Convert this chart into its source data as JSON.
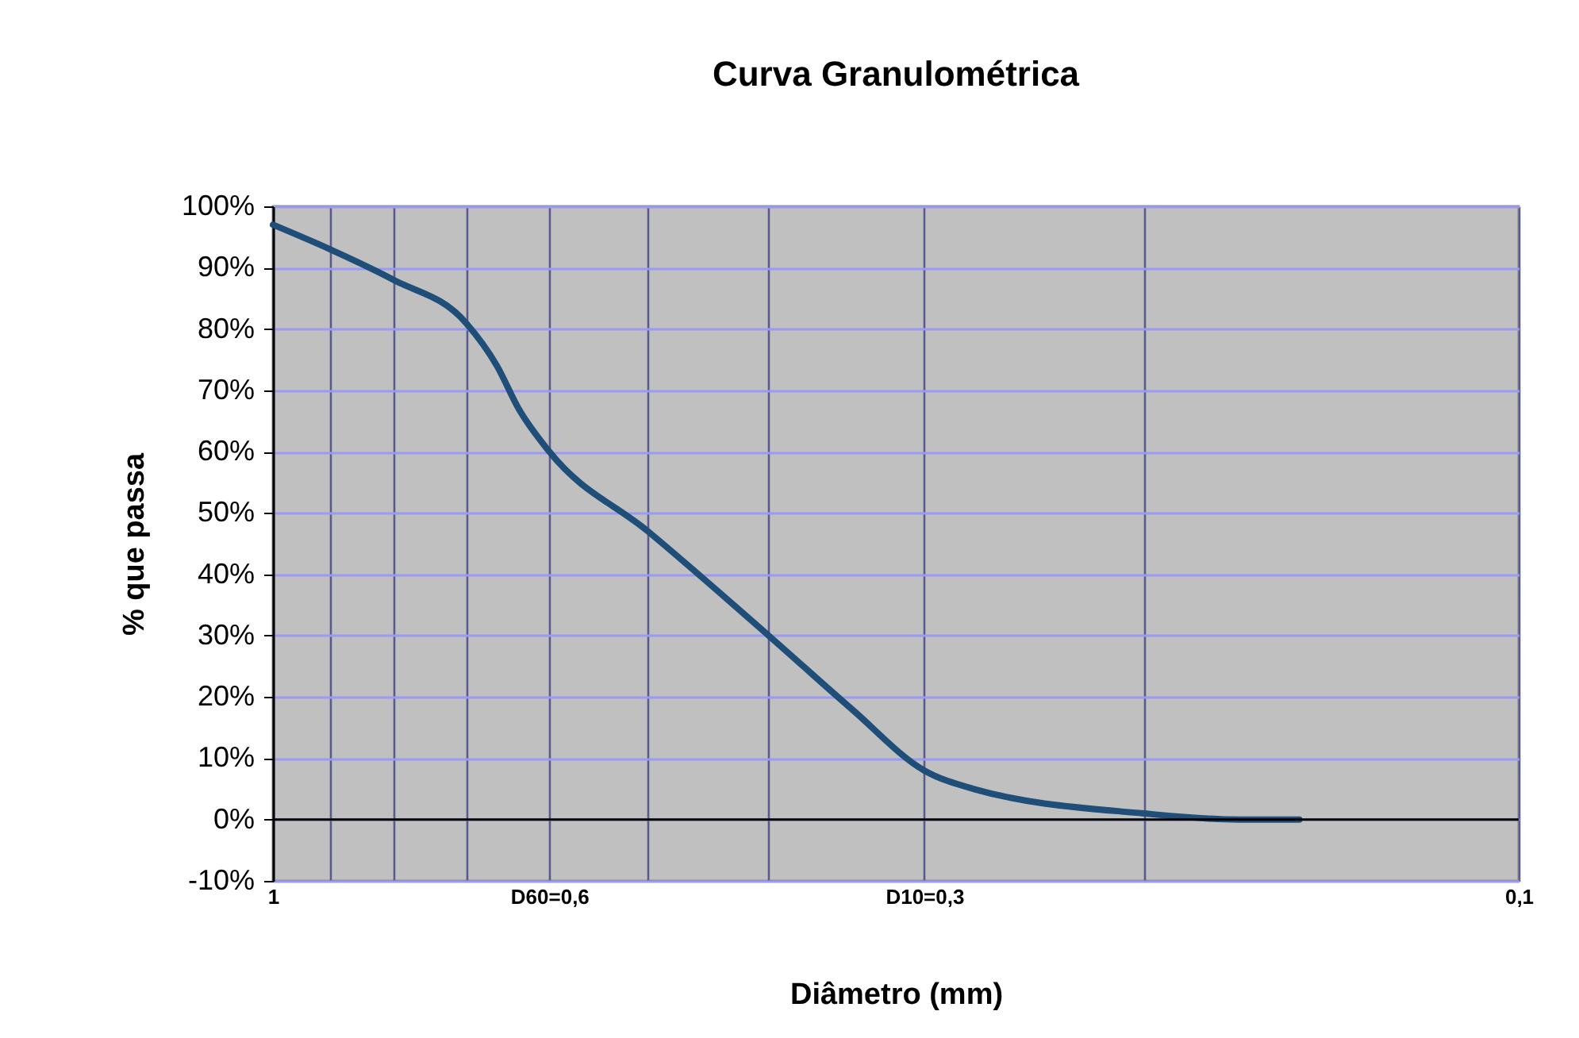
{
  "chart_data": {
    "type": "line",
    "title": "Curva Granulométrica",
    "xlabel": "Diâmetro  (mm)",
    "ylabel": "% que passa",
    "log": "x",
    "x": [
      1,
      0.9,
      0.8,
      0.7,
      0.661,
      0.635,
      0.6,
      0.5,
      0.4,
      0.343,
      0.3,
      0.274,
      0.2,
      0.168,
      0.15
    ],
    "series": [
      {
        "color": "#1f4e79",
        "values": [
          97,
          93,
          88,
          81,
          74,
          67,
          60,
          47,
          30,
          18,
          8,
          5,
          1,
          0,
          0
        ]
      }
    ],
    "xlim": [
      1,
      0.1
    ],
    "xticks": [
      {
        "value": 1,
        "label": "1"
      },
      {
        "value": 0.9,
        "label": null
      },
      {
        "value": 0.8,
        "label": null
      },
      {
        "value": 0.7,
        "label": null
      },
      {
        "value": 0.6,
        "label": "D60=0,6"
      },
      {
        "value": 0.5,
        "label": null
      },
      {
        "value": 0.4,
        "label": null
      },
      {
        "value": 0.3,
        "label": "D10=0,3"
      },
      {
        "value": 0.2,
        "label": null
      },
      {
        "value": 0.1,
        "label": "0,1"
      }
    ],
    "ylim": [
      -10,
      100
    ],
    "yticks": [
      {
        "value": -10,
        "label": "-10%"
      },
      {
        "value": 0,
        "label": "0%"
      },
      {
        "value": 10,
        "label": "10%"
      },
      {
        "value": 20,
        "label": "20%"
      },
      {
        "value": 30,
        "label": "30%"
      },
      {
        "value": 40,
        "label": "40%"
      },
      {
        "value": 50,
        "label": "50%"
      },
      {
        "value": 60,
        "label": "60%"
      },
      {
        "value": 70,
        "label": "70%"
      },
      {
        "value": 80,
        "label": "80%"
      },
      {
        "value": 90,
        "label": "90%"
      },
      {
        "value": 100,
        "label": "100%"
      }
    ],
    "ref_lines": [
      {
        "axis": "y",
        "value": 0,
        "color": "#000000"
      }
    ],
    "grid": true,
    "marker": "none",
    "line_style": "solid"
  }
}
